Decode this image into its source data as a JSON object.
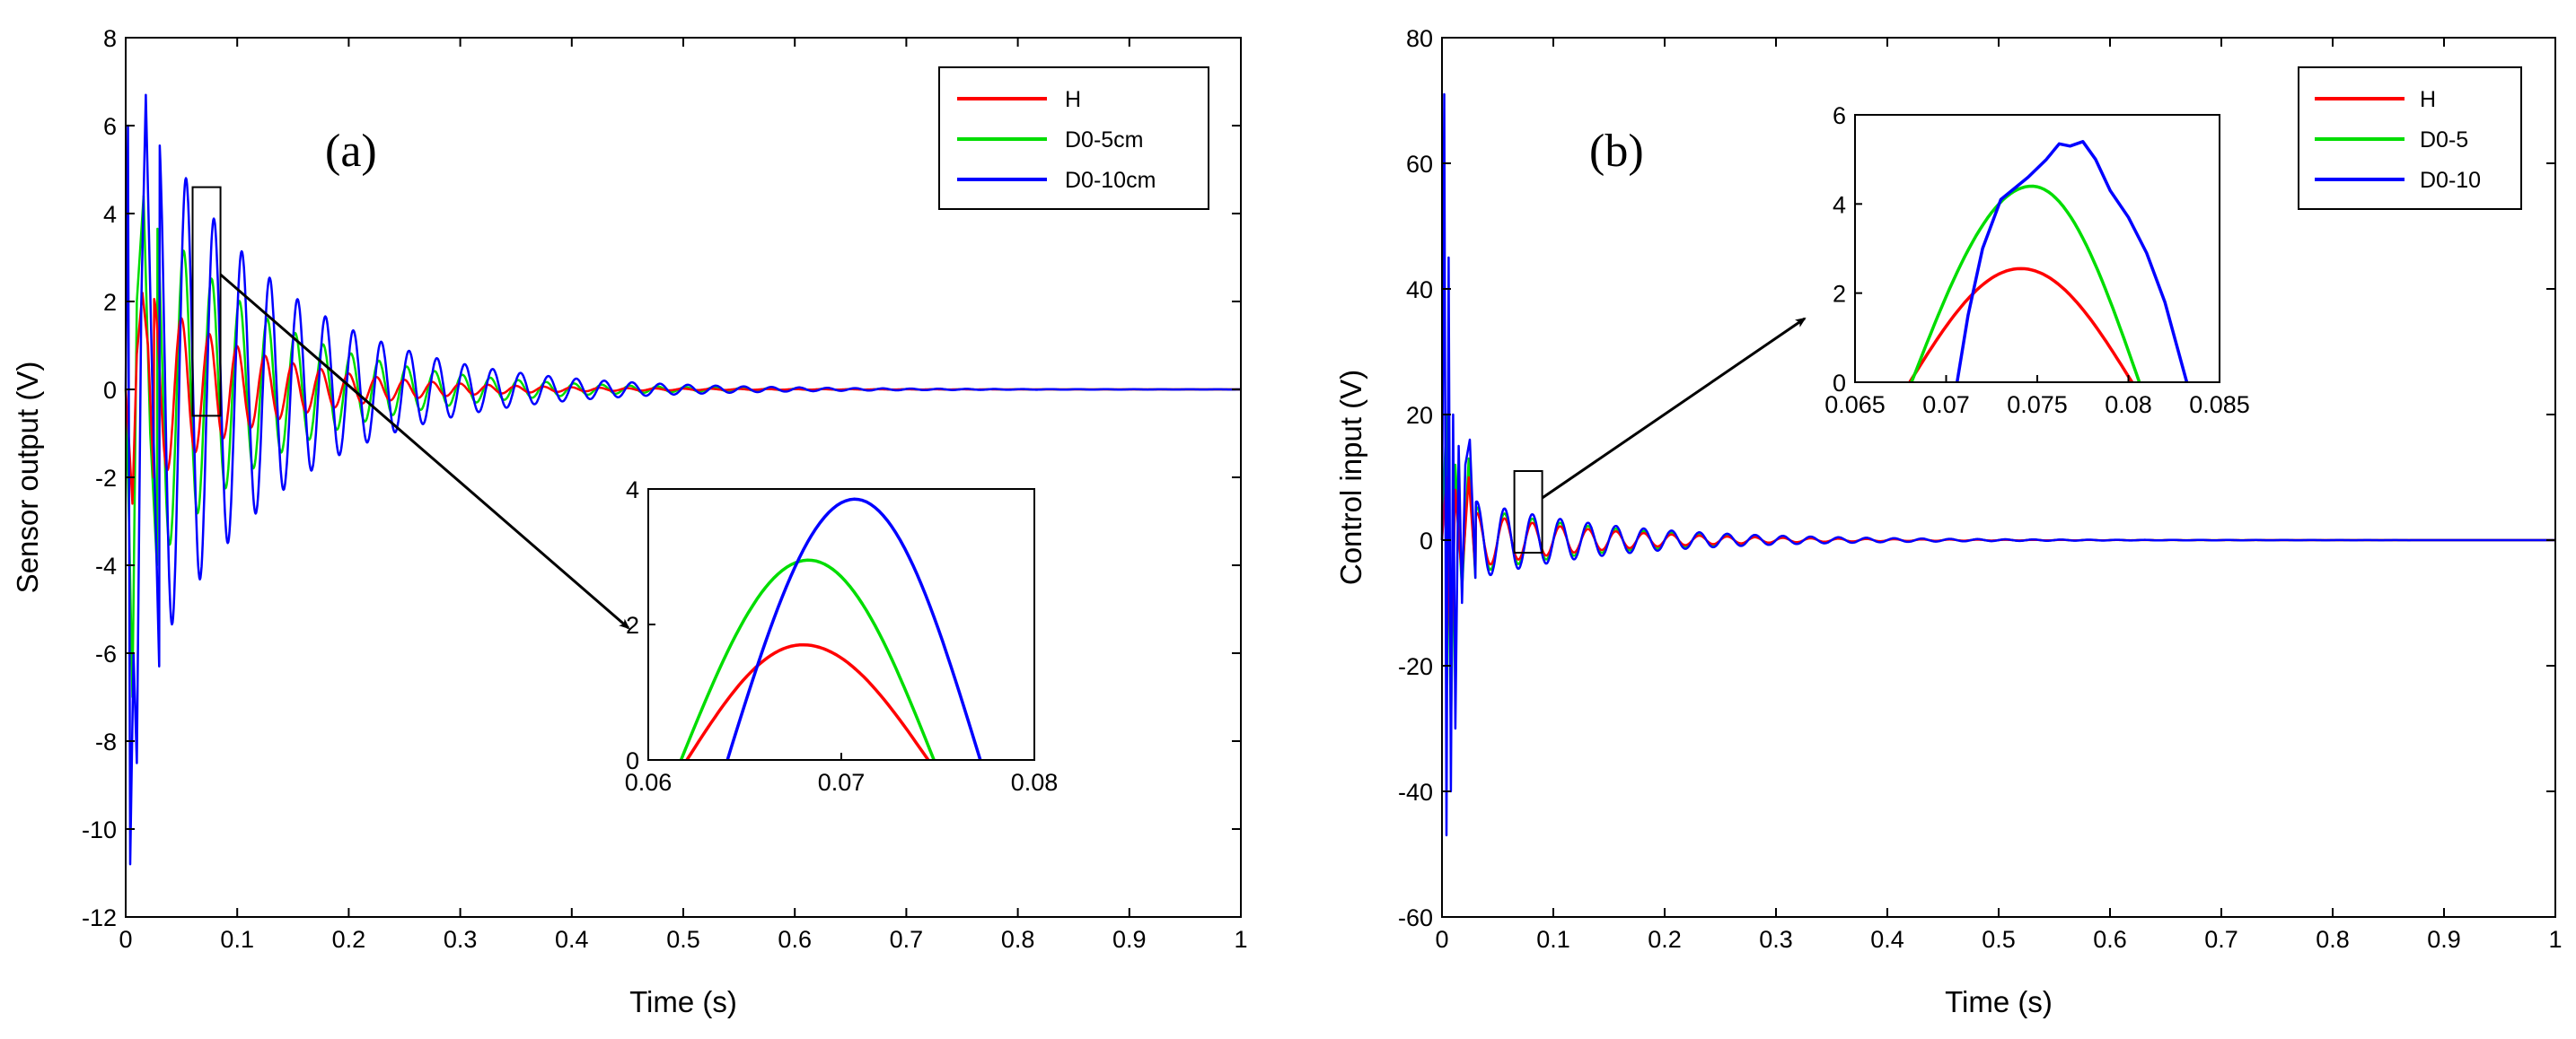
{
  "colors": {
    "H": "#ff0000",
    "D0_5": "#00dd00",
    "D0_10": "#0000ff",
    "axis": "#000000"
  },
  "chart_data": [
    {
      "id": "a",
      "type": "line",
      "panel_label": "(a)",
      "xlabel": "Time (s)",
      "ylabel": "Sensor output (V)",
      "xlim": [
        0,
        1
      ],
      "ylim": [
        -12,
        8
      ],
      "xticks": [
        0,
        0.1,
        0.2,
        0.3,
        0.4,
        0.5,
        0.6,
        0.7,
        0.8,
        0.9,
        1
      ],
      "xtick_labels": [
        "0",
        "0.1",
        "0.2",
        "0.3",
        "0.4",
        "0.5",
        "0.6",
        "0.7",
        "0.8",
        "0.9",
        "1"
      ],
      "yticks": [
        -12,
        -10,
        -8,
        -6,
        -4,
        -2,
        0,
        2,
        4,
        6,
        8
      ],
      "ytick_labels": [
        "-12",
        "-10",
        "-8",
        "-6",
        "-4",
        "-2",
        "0",
        "2",
        "4",
        "6",
        "8"
      ],
      "legend": {
        "entries": [
          "H",
          "D0-5cm",
          "D0-10cm"
        ],
        "placement": "top-right"
      },
      "series": [
        {
          "name": "H",
          "color_key": "H",
          "freq_hz": 40,
          "phase_deg": 90,
          "peak_v": 2.3,
          "decay_per_s": 10,
          "burst": [
            {
              "x": 0.0,
              "y": 0
            },
            {
              "x": 0.003,
              "y": -1.2
            },
            {
              "x": 0.006,
              "y": -2.6
            },
            {
              "x": 0.01,
              "y": 0.8
            },
            {
              "x": 0.015,
              "y": 2.2
            },
            {
              "x": 0.02,
              "y": 1.0
            },
            {
              "x": 0.025,
              "y": -2.0
            }
          ]
        },
        {
          "name": "D0-5cm",
          "color_key": "D0_5",
          "freq_hz": 40,
          "phase_deg": 60,
          "peak_v": 4.4,
          "decay_per_s": 9,
          "burst": [
            {
              "x": 0.0,
              "y": 0
            },
            {
              "x": 0.003,
              "y": -3.0
            },
            {
              "x": 0.006,
              "y": -7.0
            },
            {
              "x": 0.01,
              "y": 2.0
            },
            {
              "x": 0.016,
              "y": 4.4
            },
            {
              "x": 0.022,
              "y": -1.0
            },
            {
              "x": 0.028,
              "y": -4.0
            }
          ]
        },
        {
          "name": "D0-10cm",
          "color_key": "D0_10",
          "freq_hz": 40,
          "phase_deg": 30,
          "peak_v": 6.7,
          "decay_per_s": 8.5,
          "burst": [
            {
              "x": 0.0,
              "y": 0
            },
            {
              "x": 0.002,
              "y": 6.0
            },
            {
              "x": 0.004,
              "y": -10.8
            },
            {
              "x": 0.007,
              "y": -6.0
            },
            {
              "x": 0.01,
              "y": -8.5
            },
            {
              "x": 0.014,
              "y": 2.0
            },
            {
              "x": 0.018,
              "y": 6.7
            },
            {
              "x": 0.024,
              "y": 0.0
            },
            {
              "x": 0.03,
              "y": -6.3
            }
          ]
        }
      ],
      "zoom_box": {
        "x": [
          0.06,
          0.085
        ],
        "y": [
          -0.6,
          4.6
        ]
      },
      "inset": {
        "xlim": [
          0.06,
          0.08
        ],
        "ylim": [
          0,
          4
        ],
        "xticks": [
          0.06,
          0.07,
          0.08
        ],
        "xtick_labels": [
          "0.06",
          "0.07",
          "0.08"
        ],
        "yticks": [
          0,
          2,
          4
        ],
        "ytick_labels": [
          "0",
          "2",
          "4"
        ],
        "series": [
          {
            "name": "H",
            "color_key": "H",
            "x0": 0.062,
            "x1": 0.0745,
            "peak_x": 0.068,
            "peak_y": 1.7
          },
          {
            "name": "D0-5cm",
            "color_key": "D0_5",
            "x0": 0.0617,
            "x1": 0.0748,
            "peak_x": 0.0683,
            "peak_y": 2.95
          },
          {
            "name": "D0-10cm",
            "color_key": "D0_10",
            "x0": 0.0641,
            "x1": 0.0772,
            "peak_x": 0.0707,
            "peak_y": 3.85
          }
        ]
      }
    },
    {
      "id": "b",
      "type": "line",
      "panel_label": "(b)",
      "xlabel": "Time (s)",
      "ylabel": "Control input (V)",
      "xlim": [
        0,
        1
      ],
      "ylim": [
        -60,
        80
      ],
      "xticks": [
        0,
        0.1,
        0.2,
        0.3,
        0.4,
        0.5,
        0.6,
        0.7,
        0.8,
        0.9,
        1
      ],
      "xtick_labels": [
        "0",
        "0.1",
        "0.2",
        "0.3",
        "0.4",
        "0.5",
        "0.6",
        "0.7",
        "0.8",
        "0.9",
        "1"
      ],
      "yticks": [
        -60,
        -40,
        -20,
        0,
        20,
        40,
        60,
        80
      ],
      "ytick_labels": [
        "-60",
        "-40",
        "-20",
        "0",
        "20",
        "40",
        "60",
        "80"
      ],
      "legend": {
        "entries": [
          "H",
          "D0-5",
          "D0-10"
        ],
        "placement": "top-right"
      },
      "series": [
        {
          "name": "H",
          "color_key": "H",
          "freq_hz": 40,
          "phase_deg": 0,
          "peak_v": 5,
          "decay_per_s": 9,
          "burst": [
            {
              "x": 0.0,
              "y": 0
            },
            {
              "x": 0.004,
              "y": 10
            },
            {
              "x": 0.008,
              "y": -20
            },
            {
              "x": 0.012,
              "y": 8
            },
            {
              "x": 0.018,
              "y": -6
            },
            {
              "x": 0.024,
              "y": 10
            },
            {
              "x": 0.03,
              "y": -5
            }
          ]
        },
        {
          "name": "D0-5",
          "color_key": "D0_5",
          "freq_hz": 40,
          "phase_deg": 0,
          "peak_v": 6,
          "decay_per_s": 8.5,
          "burst": [
            {
              "x": 0.0,
              "y": 0
            },
            {
              "x": 0.004,
              "y": 20
            },
            {
              "x": 0.008,
              "y": -30
            },
            {
              "x": 0.012,
              "y": 12
            },
            {
              "x": 0.018,
              "y": -8
            },
            {
              "x": 0.024,
              "y": 13
            },
            {
              "x": 0.03,
              "y": -6
            }
          ]
        },
        {
          "name": "D0-10",
          "color_key": "D0_10",
          "freq_hz": 40,
          "phase_deg": 0,
          "peak_v": 7,
          "decay_per_s": 8,
          "burst": [
            {
              "x": 0.0,
              "y": 0
            },
            {
              "x": 0.002,
              "y": 71
            },
            {
              "x": 0.004,
              "y": -47
            },
            {
              "x": 0.006,
              "y": 45
            },
            {
              "x": 0.008,
              "y": -40
            },
            {
              "x": 0.01,
              "y": 20
            },
            {
              "x": 0.012,
              "y": -30
            },
            {
              "x": 0.015,
              "y": 15
            },
            {
              "x": 0.018,
              "y": -10
            },
            {
              "x": 0.021,
              "y": 12
            },
            {
              "x": 0.025,
              "y": 16
            },
            {
              "x": 0.03,
              "y": -6
            }
          ]
        }
      ],
      "zoom_box": {
        "x": [
          0.065,
          0.09
        ],
        "y": [
          -2,
          11
        ]
      },
      "inset": {
        "xlim": [
          0.065,
          0.085
        ],
        "ylim": [
          0,
          6
        ],
        "xticks": [
          0.065,
          0.07,
          0.075,
          0.08,
          0.085
        ],
        "xtick_labels": [
          "0.065",
          "0.07",
          "0.075",
          "0.08",
          "0.085"
        ],
        "yticks": [
          0,
          2,
          4,
          6
        ],
        "ytick_labels": [
          "0",
          "2",
          "4",
          "6"
        ],
        "series": [
          {
            "name": "H",
            "color_key": "H",
            "x0": 0.068,
            "x1": 0.0802,
            "peak_x": 0.0741,
            "peak_y": 2.55
          },
          {
            "name": "D0-5",
            "color_key": "D0_5",
            "x0": 0.0681,
            "x1": 0.0806,
            "peak_x": 0.0747,
            "peak_y": 4.4
          },
          {
            "name": "D0-10",
            "color_key": "D0_10",
            "points": [
              {
                "x": 0.0706,
                "y": 0
              },
              {
                "x": 0.0712,
                "y": 1.5
              },
              {
                "x": 0.072,
                "y": 3.0
              },
              {
                "x": 0.073,
                "y": 4.1
              },
              {
                "x": 0.0745,
                "y": 4.6
              },
              {
                "x": 0.0755,
                "y": 5.0
              },
              {
                "x": 0.0762,
                "y": 5.35
              },
              {
                "x": 0.0768,
                "y": 5.3
              },
              {
                "x": 0.0775,
                "y": 5.4
              },
              {
                "x": 0.0782,
                "y": 5.0
              },
              {
                "x": 0.079,
                "y": 4.3
              },
              {
                "x": 0.08,
                "y": 3.7
              },
              {
                "x": 0.081,
                "y": 2.9
              },
              {
                "x": 0.082,
                "y": 1.8
              },
              {
                "x": 0.0832,
                "y": 0
              }
            ]
          }
        ]
      }
    }
  ]
}
